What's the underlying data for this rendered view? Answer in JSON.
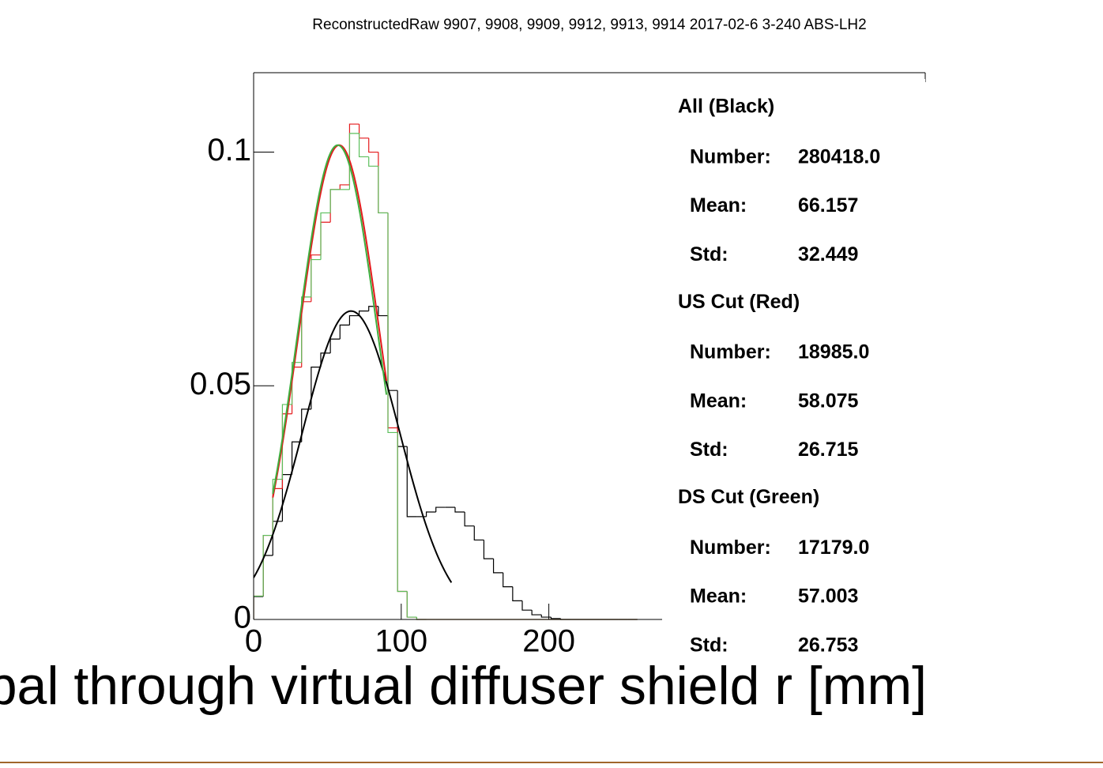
{
  "chart_data": {
    "type": "histogram",
    "title": "ReconstructedRaw 9907, 9908, 9909, 9912, 9913, 9914 2017-02-6 3-240 ABS-LH2",
    "xlabel": "bal through virtual diffuser shield r [mm]",
    "bins": [
      0,
      6.5,
      13,
      19.5,
      26,
      32.5,
      39,
      45.5,
      52,
      58.5,
      65,
      71.5,
      78,
      84.5,
      91,
      97.5,
      104,
      110.5,
      117,
      123.5,
      130,
      136.5,
      143,
      149.5,
      156,
      162.5,
      169,
      175.5,
      182,
      188.5,
      195,
      201.5,
      208,
      214.5,
      221,
      227.5,
      234,
      240.5,
      247,
      253.5,
      260
    ],
    "series": [
      {
        "color": "#000000",
        "values": [
          0.0049,
          0.0137,
          0.021,
          0.031,
          0.038,
          0.045,
          0.054,
          0.057,
          0.06,
          0.063,
          0.065,
          0.066,
          0.067,
          0.065,
          0.049,
          0.037,
          0.022,
          0.022,
          0.023,
          0.024,
          0.024,
          0.023,
          0.02,
          0.017,
          0.013,
          0.01,
          0.007,
          0.004,
          0.002,
          0.001,
          0.0005,
          0.0002,
          0,
          0,
          0,
          0,
          0,
          0,
          0,
          0
        ]
      },
      {
        "color": "#e41a1c",
        "values": [
          0.005,
          0.018,
          0.028,
          0.044,
          0.054,
          0.068,
          0.078,
          0.085,
          0.092,
          0.093,
          0.106,
          0.103,
          0.1,
          0.087,
          0.041,
          0.006,
          0.0005,
          0,
          0,
          0,
          0,
          0,
          0,
          0,
          0,
          0,
          0,
          0,
          0,
          0,
          0,
          0,
          0,
          0,
          0,
          0,
          0,
          0,
          0,
          0
        ]
      },
      {
        "color": "#5cbf5c",
        "values": [
          0.005,
          0.018,
          0.03,
          0.046,
          0.055,
          0.069,
          0.077,
          0.087,
          0.092,
          0.092,
          0.104,
          0.099,
          0.097,
          0.087,
          0.04,
          0.006,
          0.0005,
          0,
          0,
          0,
          0,
          0,
          0,
          0,
          0,
          0,
          0,
          0,
          0,
          0,
          0,
          0,
          0,
          0,
          0,
          0,
          0,
          0,
          0,
          0
        ]
      }
    ],
    "fits": [
      {
        "color": "#000000",
        "amplitude": 0.066,
        "mean": 66,
        "sigma": 33,
        "range": [
          0,
          134
        ]
      },
      {
        "color": "#e41a1c",
        "amplitude": 0.1015,
        "mean": 58,
        "sigma": 27.3,
        "range": [
          13,
          90
        ]
      },
      {
        "color": "#3fae3f",
        "amplitude": 0.1015,
        "mean": 57,
        "sigma": 27,
        "range": [
          13,
          90
        ]
      }
    ],
    "xlim": [
      0,
      455
    ],
    "ylim": [
      0,
      0.117
    ],
    "xticks": [
      0,
      100,
      200
    ],
    "yticks": [
      0,
      0.05,
      0.1
    ],
    "stats": [
      {
        "title": "All (Black)",
        "rows": [
          {
            "label": "Number:",
            "value": "280418.0"
          },
          {
            "label": "Mean:",
            "value": "66.157"
          },
          {
            "label": "Std:",
            "value": "32.449"
          }
        ]
      },
      {
        "title": "US Cut (Red)",
        "rows": [
          {
            "label": "Number:",
            "value": "18985.0"
          },
          {
            "label": "Mean:",
            "value": "58.075"
          },
          {
            "label": "Std:",
            "value": "26.715"
          }
        ]
      },
      {
        "title": "DS Cut (Green)",
        "rows": [
          {
            "label": "Number:",
            "value": "17179.0"
          },
          {
            "label": "Mean:",
            "value": "57.003"
          },
          {
            "label": "Std:",
            "value": "26.753"
          }
        ]
      }
    ]
  }
}
